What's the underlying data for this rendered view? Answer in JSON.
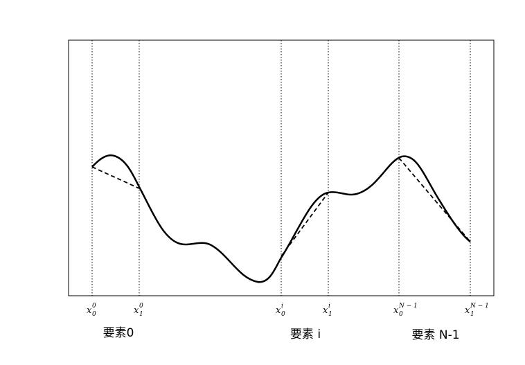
{
  "nodes": [
    {
      "base": "x",
      "sub": "0",
      "sup": "0"
    },
    {
      "base": "x",
      "sub": "1",
      "sup": "0"
    },
    {
      "base": "x",
      "sub": "0",
      "sup": "i"
    },
    {
      "base": "x",
      "sub": "1",
      "sup": "i"
    },
    {
      "base": "x",
      "sub": "0",
      "sup": "N − 1"
    },
    {
      "base": "x",
      "sub": "1",
      "sup": "N − 1"
    }
  ],
  "elements": [
    "要素0",
    "要素 i",
    "要素 N-1"
  ]
}
